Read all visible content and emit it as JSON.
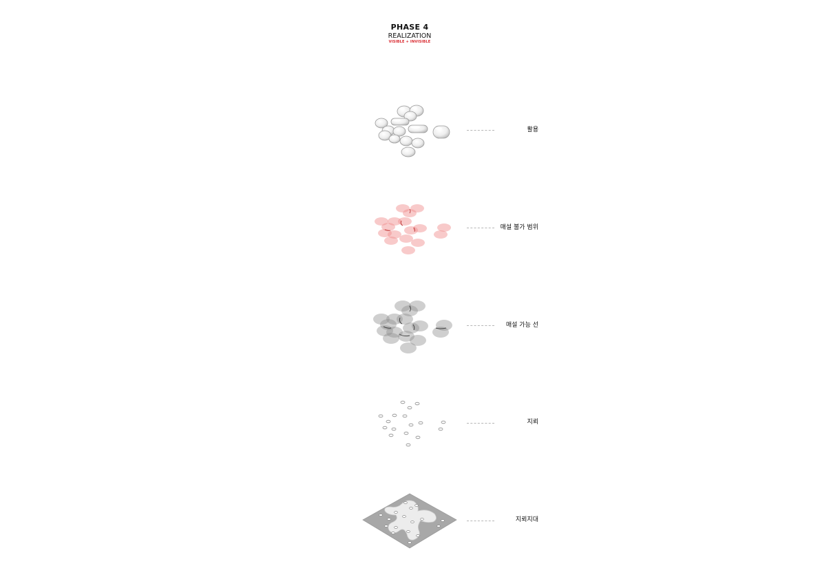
{
  "header": {
    "phase": "PHASE 4",
    "title": "REALIZATION",
    "subtitle": "VISIBLE + INVISIBLE"
  },
  "colors": {
    "accent": "#d8232a",
    "pink_fill": "#f08a8a",
    "gray_fill": "#8c8c8c",
    "plate": "#a8a8a8"
  },
  "layers": [
    {
      "label": "활용",
      "style": "glass-blobs"
    },
    {
      "label": "매설 불가 범위",
      "style": "pink-ellipses"
    },
    {
      "label": "매설 가능 선",
      "style": "gray-ellipses"
    },
    {
      "label": "지뢰",
      "style": "small-rings"
    },
    {
      "label": "지뢰지대",
      "style": "gray-plate"
    }
  ]
}
